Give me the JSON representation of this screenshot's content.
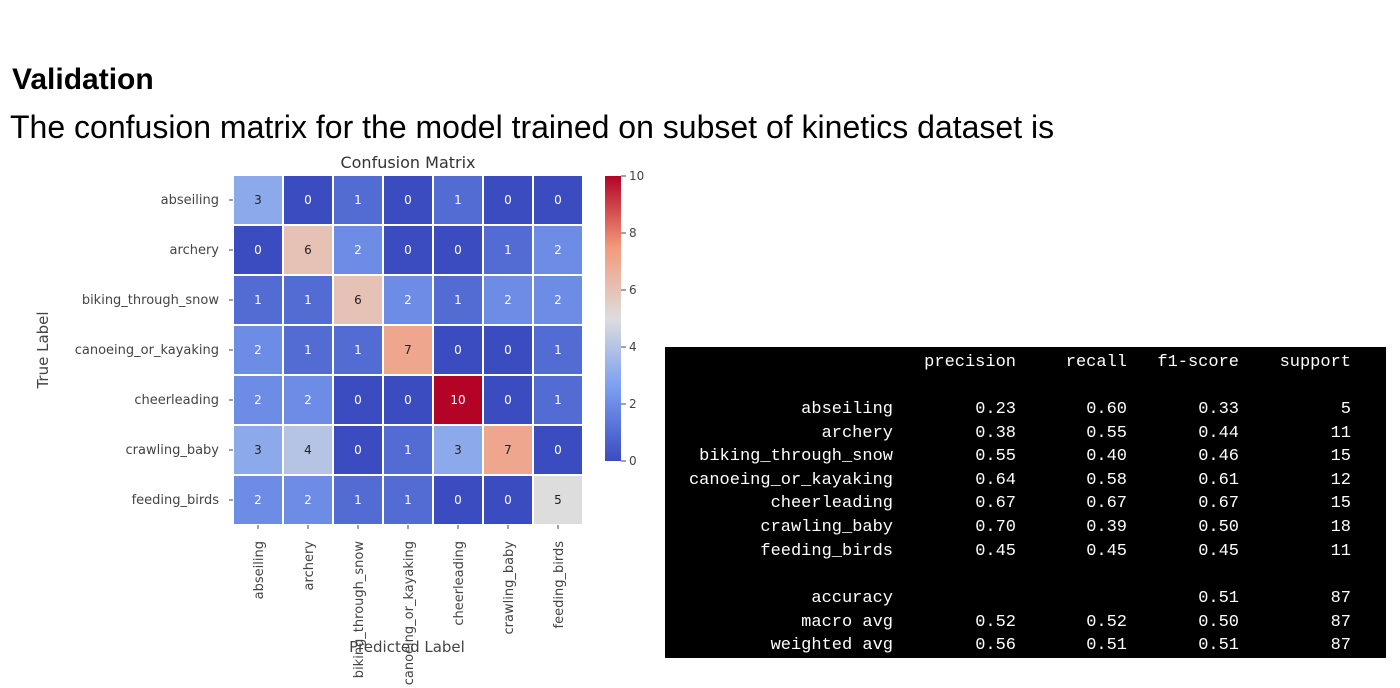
{
  "heading": "Validation",
  "intro": "The confusion matrix for the model trained on subset of kinetics dataset is",
  "chart_data": {
    "type": "heatmap",
    "title": "Confusion Matrix",
    "xlabel": "Predicted Label",
    "ylabel": "True Label",
    "x_categories": [
      "abseiling",
      "archery",
      "biking_through_snow",
      "canoeing_or_kayaking",
      "cheerleading",
      "crawling_baby",
      "feeding_birds"
    ],
    "y_categories": [
      "abseiling",
      "archery",
      "biking_through_snow",
      "canoeing_or_kayaking",
      "cheerleading",
      "crawling_baby",
      "feeding_birds"
    ],
    "matrix": [
      [
        3,
        0,
        1,
        0,
        1,
        0,
        0
      ],
      [
        0,
        6,
        2,
        0,
        0,
        1,
        2
      ],
      [
        1,
        1,
        6,
        2,
        1,
        2,
        2
      ],
      [
        2,
        1,
        1,
        7,
        0,
        0,
        1
      ],
      [
        2,
        2,
        0,
        0,
        10,
        0,
        1
      ],
      [
        3,
        4,
        0,
        1,
        3,
        7,
        0
      ],
      [
        2,
        2,
        1,
        1,
        0,
        0,
        5
      ]
    ],
    "colorbar": {
      "range": [
        0,
        10
      ],
      "ticks": [
        0,
        2,
        4,
        6,
        8,
        10
      ],
      "colormap": "coolwarm"
    },
    "colors": {
      "low": "#3b4cc0",
      "mid": "#dddddd",
      "high": "#b40426"
    }
  },
  "report": {
    "headers": [
      "precision",
      "recall",
      "f1-score",
      "support"
    ],
    "rows": [
      [
        "abseiling",
        "0.23",
        "0.60",
        "0.33",
        "5"
      ],
      [
        "archery",
        "0.38",
        "0.55",
        "0.44",
        "11"
      ],
      [
        "biking_through_snow",
        "0.55",
        "0.40",
        "0.46",
        "15"
      ],
      [
        "canoeing_or_kayaking",
        "0.64",
        "0.58",
        "0.61",
        "12"
      ],
      [
        "cheerleading",
        "0.67",
        "0.67",
        "0.67",
        "15"
      ],
      [
        "crawling_baby",
        "0.70",
        "0.39",
        "0.50",
        "18"
      ],
      [
        "feeding_birds",
        "0.45",
        "0.45",
        "0.45",
        "11"
      ]
    ],
    "summary": [
      [
        "accuracy",
        "",
        "",
        "0.51",
        "87"
      ],
      [
        "macro avg",
        "0.52",
        "0.52",
        "0.50",
        "87"
      ],
      [
        "weighted avg",
        "0.56",
        "0.51",
        "0.51",
        "87"
      ]
    ]
  }
}
